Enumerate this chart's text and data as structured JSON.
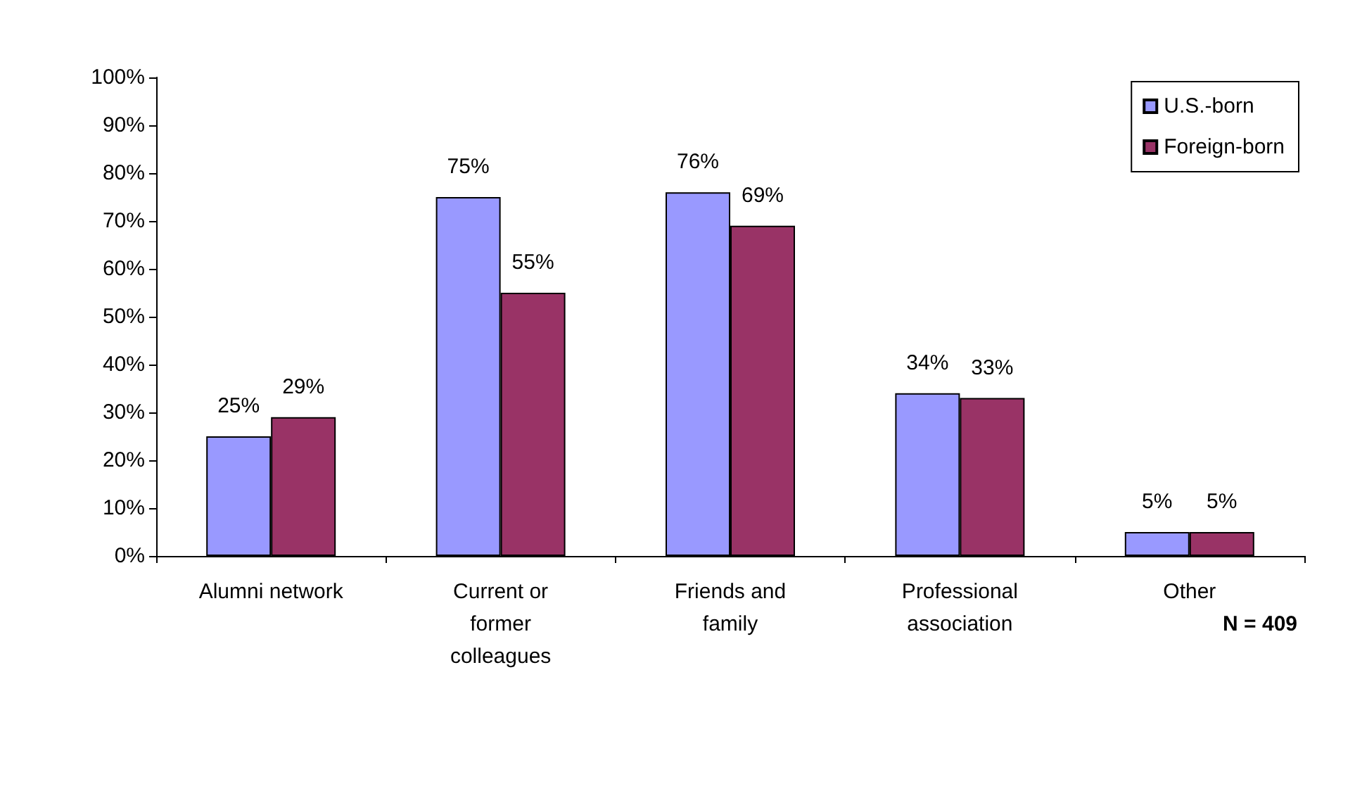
{
  "chart_data": {
    "type": "bar",
    "categories": [
      "Alumni network",
      "Current or\nformer\ncolleagues",
      "Friends and\nfamily",
      "Professional\nassociation",
      "Other"
    ],
    "series": [
      {
        "name": "U.S.-born",
        "color": "#9999ff",
        "values": [
          25,
          75,
          76,
          34,
          5
        ]
      },
      {
        "name": "Foreign-born",
        "color": "#993366",
        "values": [
          29,
          55,
          69,
          33,
          5
        ]
      }
    ],
    "value_labels": [
      [
        "25%",
        "75%",
        "76%",
        "34%",
        "5%"
      ],
      [
        "29%",
        "55%",
        "69%",
        "33%",
        "5%"
      ]
    ],
    "ylim": [
      0,
      100
    ],
    "yticks": [
      {
        "value": 0,
        "label": "0%"
      },
      {
        "value": 10,
        "label": "10%"
      },
      {
        "value": 20,
        "label": "20%"
      },
      {
        "value": 30,
        "label": "30%"
      },
      {
        "value": 40,
        "label": "40%"
      },
      {
        "value": 50,
        "label": "50%"
      },
      {
        "value": 60,
        "label": "60%"
      },
      {
        "value": 70,
        "label": "70%"
      },
      {
        "value": 80,
        "label": "80%"
      },
      {
        "value": 90,
        "label": "90%"
      },
      {
        "value": 100,
        "label": "100%"
      }
    ],
    "grid": false,
    "legend": "top right",
    "annotations": [
      "N = 409"
    ]
  }
}
